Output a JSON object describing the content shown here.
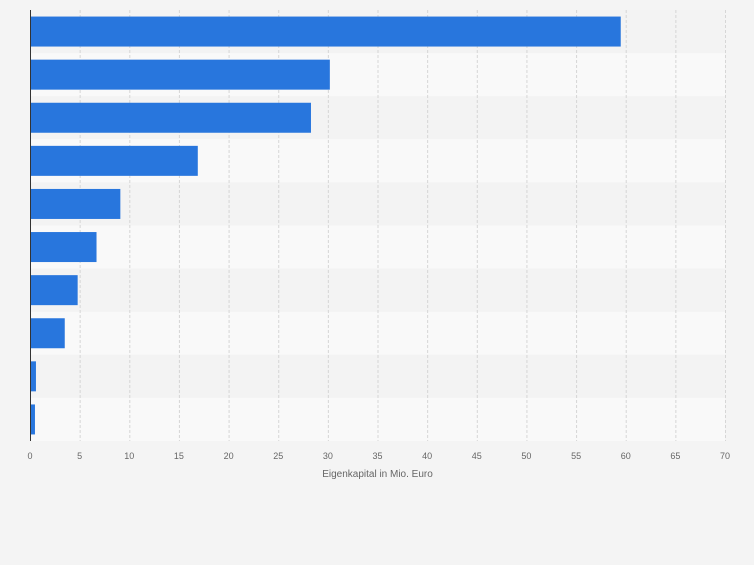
{
  "chart_data": {
    "type": "bar",
    "orientation": "horizontal",
    "title": "",
    "xlabel": "Eigenkapital in Mio. Euro",
    "ylabel": "",
    "xlim": [
      0,
      70
    ],
    "x_ticks": [
      0,
      5,
      10,
      15,
      20,
      25,
      30,
      35,
      40,
      45,
      50,
      55,
      60,
      65,
      70
    ],
    "grid": true,
    "categories": [
      "",
      "",
      "",
      "",
      "",
      "",
      "",
      "",
      "",
      ""
    ],
    "values": [
      59.5,
      30.2,
      28.3,
      16.9,
      9.1,
      6.7,
      4.8,
      3.5,
      0.6,
      0.5
    ],
    "colors": {
      "bar": "#2876dd",
      "band_light": "#f9f9f9",
      "band_dark": "#f3f3f3",
      "grid": "#d6d6d6",
      "axis": "#333333",
      "tick_text": "#666666"
    }
  }
}
